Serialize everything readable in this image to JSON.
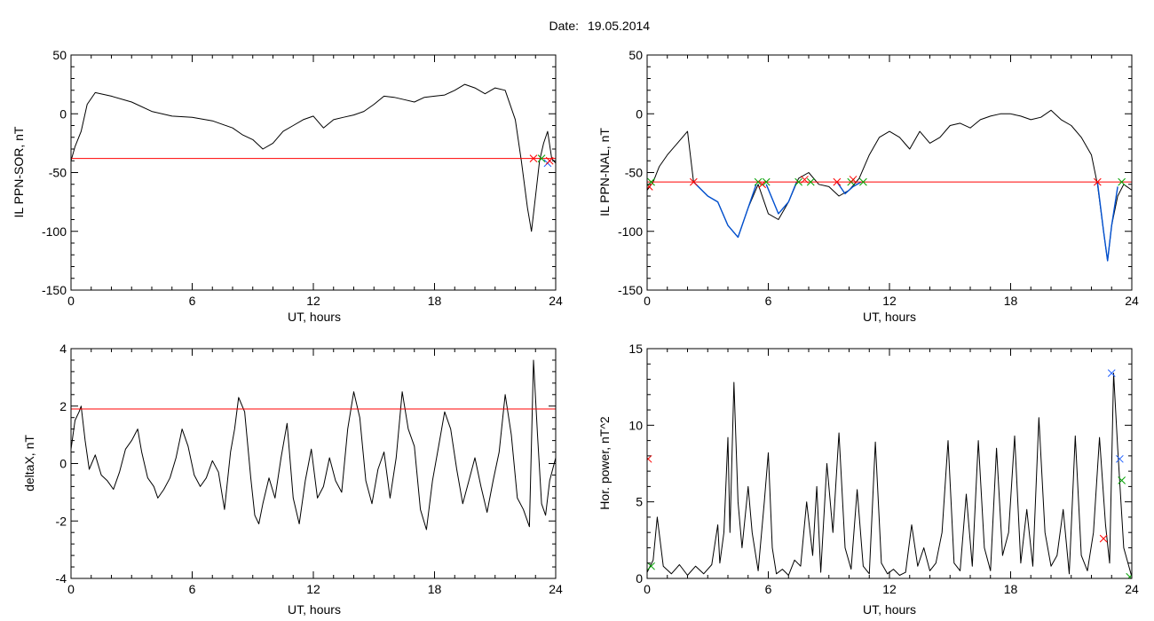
{
  "header": {
    "date_label": "Date:",
    "date_value": "19.05.2014"
  },
  "colors": {
    "trace": "#000000",
    "threshold": "#ff0000",
    "highlight": "#0050d0",
    "marker_red": "#ff0000",
    "marker_green": "#00a000",
    "marker_blue": "#2060ff"
  },
  "chart_data": [
    {
      "id": "il-ppn-sor",
      "type": "line",
      "title": "",
      "xlabel": "UT, hours",
      "ylabel": "IL PPN-SOR, nT",
      "xlim": [
        0,
        24
      ],
      "ylim": [
        -150,
        50
      ],
      "xticks": [
        0,
        6,
        12,
        18,
        24
      ],
      "yticks": [
        -150,
        -100,
        -50,
        0,
        50
      ],
      "grid": false,
      "series": [
        {
          "role": "trace",
          "color": "#000000",
          "x": [
            0,
            0.2,
            0.5,
            0.8,
            1.2,
            2,
            3,
            4,
            5,
            6,
            7,
            8,
            8.5,
            9,
            9.5,
            10,
            10.5,
            11,
            11.5,
            12,
            12.5,
            13,
            13.5,
            14,
            14.5,
            15,
            15.5,
            16,
            16.5,
            17,
            17.5,
            18,
            18.5,
            19,
            19.5,
            20,
            20.5,
            21,
            21.5,
            22,
            22.3,
            22.6,
            22.8,
            23,
            23.2,
            23.4,
            23.6,
            23.8,
            24
          ],
          "y": [
            -40,
            -28,
            -15,
            8,
            18,
            15,
            10,
            2,
            -2,
            -3,
            -6,
            -12,
            -18,
            -22,
            -30,
            -25,
            -15,
            -10,
            -5,
            -2,
            -12,
            -5,
            -3,
            -1,
            2,
            8,
            15,
            14,
            12,
            10,
            14,
            15,
            16,
            20,
            25,
            22,
            17,
            22,
            20,
            -5,
            -40,
            -80,
            -100,
            -70,
            -40,
            -25,
            -15,
            -38,
            -42
          ]
        },
        {
          "role": "threshold",
          "color": "#ff0000",
          "x": [
            0,
            24
          ],
          "y": [
            -38,
            -38
          ]
        }
      ],
      "markers": [
        {
          "x": 22.9,
          "y": -38,
          "color": "#ff0000"
        },
        {
          "x": 23.3,
          "y": -38,
          "color": "#00a000"
        },
        {
          "x": 23.6,
          "y": -42,
          "color": "#2060ff"
        },
        {
          "x": 23.7,
          "y": -40,
          "color": "#ff0000"
        }
      ]
    },
    {
      "id": "il-ppn-nal",
      "type": "line",
      "title": "",
      "xlabel": "UT, hours",
      "ylabel": "IL PPN-NAL, nT",
      "xlim": [
        0,
        24
      ],
      "ylim": [
        -150,
        50
      ],
      "xticks": [
        0,
        6,
        12,
        18,
        24
      ],
      "yticks": [
        -150,
        -100,
        -50,
        0,
        50
      ],
      "grid": false,
      "series": [
        {
          "role": "trace",
          "color": "#000000",
          "x": [
            0,
            0.3,
            0.6,
            1,
            1.5,
            2,
            2.3,
            3,
            3.5,
            4,
            4.5,
            5,
            5.5,
            6,
            6.5,
            7,
            7.5,
            8,
            8.5,
            9,
            9.5,
            10,
            10.5,
            11,
            11.5,
            12,
            12.5,
            13,
            13.5,
            14,
            14.5,
            15,
            15.5,
            16,
            16.5,
            17,
            17.5,
            18,
            18.5,
            19,
            19.5,
            20,
            20.5,
            21,
            21.5,
            22,
            22.3,
            22.6,
            22.8,
            23,
            23.3,
            23.6,
            24
          ],
          "y": [
            -65,
            -58,
            -45,
            -35,
            -25,
            -15,
            -58,
            -70,
            -75,
            -95,
            -105,
            -80,
            -60,
            -85,
            -90,
            -75,
            -55,
            -50,
            -60,
            -62,
            -70,
            -65,
            -55,
            -35,
            -20,
            -15,
            -20,
            -30,
            -15,
            -25,
            -20,
            -10,
            -8,
            -12,
            -5,
            -2,
            0,
            0,
            -2,
            -5,
            -3,
            3,
            -5,
            -10,
            -20,
            -35,
            -60,
            -100,
            -125,
            -95,
            -70,
            -60,
            -65
          ]
        },
        {
          "role": "highlight",
          "color": "#0050d0",
          "x": [
            2.3,
            3,
            3.5,
            4,
            4.5,
            5,
            5.4
          ],
          "y": [
            -58,
            -70,
            -75,
            -95,
            -105,
            -80,
            -60
          ]
        },
        {
          "role": "highlight",
          "color": "#0050d0",
          "x": [
            5.9,
            6.5,
            7,
            7.4
          ],
          "y": [
            -60,
            -85,
            -75,
            -58
          ]
        },
        {
          "role": "highlight",
          "color": "#0050d0",
          "x": [
            9.4,
            9.8,
            10.2,
            10.6
          ],
          "y": [
            -58,
            -68,
            -62,
            -58
          ]
        },
        {
          "role": "highlight",
          "color": "#0050d0",
          "x": [
            22.3,
            22.6,
            22.8,
            23,
            23.3
          ],
          "y": [
            -58,
            -100,
            -125,
            -95,
            -62
          ]
        },
        {
          "role": "threshold",
          "color": "#ff0000",
          "x": [
            0,
            24
          ],
          "y": [
            -58,
            -58
          ]
        }
      ],
      "markers": [
        {
          "x": 0.1,
          "y": -62,
          "color": "#ff0000"
        },
        {
          "x": 0.2,
          "y": -58,
          "color": "#00a000"
        },
        {
          "x": 2.3,
          "y": -58,
          "color": "#ff0000"
        },
        {
          "x": 5.5,
          "y": -58,
          "color": "#00a000"
        },
        {
          "x": 5.7,
          "y": -60,
          "color": "#ff0000"
        },
        {
          "x": 5.9,
          "y": -58,
          "color": "#00a000"
        },
        {
          "x": 7.5,
          "y": -58,
          "color": "#00a000"
        },
        {
          "x": 7.8,
          "y": -56,
          "color": "#ff0000"
        },
        {
          "x": 8.1,
          "y": -58,
          "color": "#00a000"
        },
        {
          "x": 9.4,
          "y": -58,
          "color": "#ff0000"
        },
        {
          "x": 10.1,
          "y": -58,
          "color": "#00a000"
        },
        {
          "x": 10.2,
          "y": -56,
          "color": "#ff0000"
        },
        {
          "x": 10.7,
          "y": -58,
          "color": "#00a000"
        },
        {
          "x": 22.3,
          "y": -58,
          "color": "#ff0000"
        },
        {
          "x": 23.5,
          "y": -58,
          "color": "#00a000"
        }
      ]
    },
    {
      "id": "deltax",
      "type": "line",
      "title": "",
      "xlabel": "UT, hours",
      "ylabel": "deltaX, nT",
      "xlim": [
        0,
        24
      ],
      "ylim": [
        -4,
        4
      ],
      "xticks": [
        0,
        6,
        12,
        18,
        24
      ],
      "yticks": [
        -4,
        -2,
        0,
        2,
        4
      ],
      "grid": false,
      "series": [
        {
          "role": "trace",
          "color": "#000000",
          "x": [
            0,
            0.2,
            0.4,
            0.5,
            0.7,
            0.9,
            1.2,
            1.5,
            1.8,
            2.1,
            2.4,
            2.7,
            3,
            3.3,
            3.5,
            3.8,
            4.1,
            4.3,
            4.6,
            4.9,
            5.2,
            5.5,
            5.8,
            6.1,
            6.4,
            6.7,
            7,
            7.3,
            7.6,
            7.9,
            8.1,
            8.3,
            8.6,
            8.9,
            9.1,
            9.3,
            9.5,
            9.8,
            10.1,
            10.4,
            10.7,
            11,
            11.3,
            11.6,
            11.9,
            12.2,
            12.5,
            12.8,
            13.1,
            13.4,
            13.7,
            14,
            14.3,
            14.6,
            14.9,
            15.2,
            15.5,
            15.8,
            16.1,
            16.4,
            16.7,
            17,
            17.3,
            17.6,
            17.9,
            18.2,
            18.5,
            18.8,
            19.1,
            19.4,
            19.7,
            20,
            20.3,
            20.6,
            20.9,
            21.2,
            21.5,
            21.8,
            22.1,
            22.4,
            22.7,
            22.9,
            23.1,
            23.3,
            23.5,
            23.7,
            24
          ],
          "y": [
            0.5,
            1.5,
            1.8,
            2.0,
            0.8,
            -0.2,
            0.3,
            -0.4,
            -0.6,
            -0.9,
            -0.3,
            0.5,
            0.8,
            1.2,
            0.4,
            -0.5,
            -0.8,
            -1.2,
            -0.9,
            -0.5,
            0.2,
            1.2,
            0.6,
            -0.4,
            -0.8,
            -0.5,
            0.1,
            -0.3,
            -1.6,
            0.4,
            1.2,
            2.3,
            1.8,
            -0.5,
            -1.8,
            -2.1,
            -1.4,
            -0.5,
            -1.2,
            0.2,
            1.4,
            -1.2,
            -2.1,
            -0.6,
            0.5,
            -1.2,
            -0.8,
            0.2,
            -0.6,
            -1.0,
            1.2,
            2.5,
            1.6,
            -0.6,
            -1.4,
            -0.2,
            0.4,
            -1.2,
            0.2,
            2.5,
            1.2,
            0.6,
            -1.6,
            -2.3,
            -0.6,
            0.6,
            1.8,
            1.2,
            -0.2,
            -1.4,
            -0.6,
            0.2,
            -0.8,
            -1.7,
            -0.6,
            0.4,
            2.4,
            1.0,
            -1.2,
            -1.6,
            -2.2,
            3.6,
            1.0,
            -1.4,
            -1.8,
            -0.6,
            0.2
          ]
        },
        {
          "role": "threshold",
          "color": "#ff0000",
          "x": [
            0,
            24
          ],
          "y": [
            1.9,
            1.9
          ]
        }
      ],
      "markers": []
    },
    {
      "id": "hor-power",
      "type": "line",
      "title": "",
      "xlabel": "UT, hours",
      "ylabel": "Hor. power, nT^2",
      "xlim": [
        0,
        24
      ],
      "ylim": [
        0,
        15
      ],
      "xticks": [
        0,
        6,
        12,
        18,
        24
      ],
      "yticks": [
        0,
        5,
        10,
        15
      ],
      "grid": false,
      "series": [
        {
          "role": "trace",
          "color": "#000000",
          "x": [
            0,
            0.3,
            0.5,
            0.8,
            1.2,
            1.6,
            2,
            2.4,
            2.8,
            3.2,
            3.5,
            3.6,
            3.8,
            4,
            4.1,
            4.3,
            4.5,
            4.7,
            5,
            5.2,
            5.5,
            5.8,
            6,
            6.2,
            6.4,
            6.7,
            7,
            7.3,
            7.6,
            7.9,
            8.2,
            8.4,
            8.6,
            8.9,
            9.2,
            9.5,
            9.8,
            10.1,
            10.4,
            10.7,
            11,
            11.3,
            11.6,
            11.9,
            12.2,
            12.5,
            12.8,
            13.1,
            13.4,
            13.7,
            14,
            14.3,
            14.6,
            14.9,
            15.2,
            15.5,
            15.8,
            16.1,
            16.4,
            16.7,
            17,
            17.3,
            17.6,
            17.9,
            18.2,
            18.5,
            18.8,
            19.1,
            19.4,
            19.7,
            20,
            20.3,
            20.6,
            20.9,
            21.2,
            21.5,
            21.8,
            22.1,
            22.4,
            22.7,
            22.9,
            23.1,
            23.3,
            23.6,
            24
          ],
          "y": [
            0.4,
            1.2,
            4.0,
            0.8,
            0.3,
            0.9,
            0.2,
            0.8,
            0.3,
            0.9,
            3.5,
            1.0,
            3.0,
            9.2,
            3.0,
            12.8,
            5.0,
            2.0,
            6.0,
            3.0,
            0.5,
            5.0,
            8.2,
            2.0,
            0.3,
            0.6,
            0.2,
            1.2,
            0.8,
            5.0,
            1.5,
            6.0,
            0.4,
            7.5,
            3.0,
            9.5,
            2.0,
            0.6,
            5.8,
            0.8,
            0.3,
            8.9,
            1.0,
            0.3,
            0.6,
            0.2,
            0.4,
            3.5,
            0.8,
            2.0,
            0.5,
            1.0,
            3.0,
            9.0,
            1.0,
            0.5,
            5.5,
            0.8,
            9.0,
            2.0,
            0.5,
            8.5,
            1.5,
            3.0,
            9.3,
            1.0,
            4.5,
            0.8,
            10.5,
            3.0,
            0.8,
            1.5,
            4.5,
            0.3,
            9.3,
            1.5,
            0.5,
            3.0,
            9.2,
            3.5,
            1.0,
            13.4,
            8.5,
            2.0,
            0.1
          ]
        }
      ],
      "markers": [
        {
          "x": 0.05,
          "y": 7.8,
          "color": "#ff0000"
        },
        {
          "x": 0.2,
          "y": 0.8,
          "color": "#00a000"
        },
        {
          "x": 22.6,
          "y": 2.6,
          "color": "#ff0000"
        },
        {
          "x": 23.0,
          "y": 13.4,
          "color": "#2060ff"
        },
        {
          "x": 23.4,
          "y": 7.8,
          "color": "#2060ff"
        },
        {
          "x": 23.5,
          "y": 6.4,
          "color": "#00a000"
        },
        {
          "x": 23.9,
          "y": 0.1,
          "color": "#00a000"
        }
      ]
    }
  ]
}
